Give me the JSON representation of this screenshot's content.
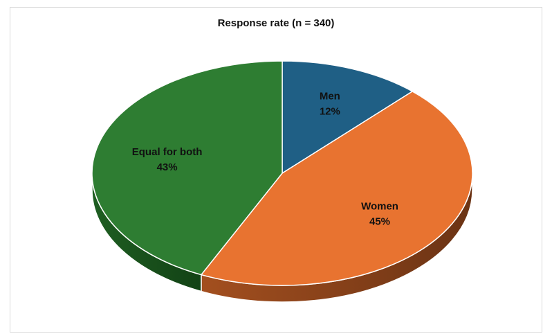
{
  "chart_data": {
    "type": "pie",
    "title": "Response rate (n = 340)",
    "slices": [
      {
        "label": "Men",
        "value": 12,
        "value_label": "12%",
        "color": "#1f5f85"
      },
      {
        "label": "Women",
        "value": 45,
        "value_label": "45%",
        "color": "#e87330"
      },
      {
        "label": "Equal for both",
        "value": 43,
        "value_label": "43%",
        "color": "#2e7d32"
      }
    ],
    "style": "3d",
    "legend": "none"
  }
}
